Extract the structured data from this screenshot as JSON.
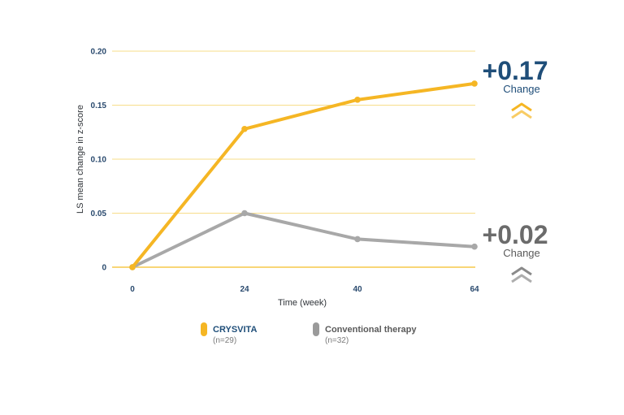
{
  "chart_data": {
    "type": "line",
    "x": [
      0,
      24,
      40,
      64
    ],
    "xlabel": "Time (week)",
    "ylabel": "LS mean change in z-score",
    "xticks": [
      "0",
      "24",
      "40",
      "64"
    ],
    "yticks": [
      "0",
      "0.05",
      "0.10",
      "0.15",
      "0.20"
    ],
    "ylim": [
      0,
      0.2
    ],
    "grid": "horizontal",
    "legend_position": "bottom",
    "series": [
      {
        "name": "CRYSVITA",
        "values": [
          0,
          0.128,
          0.155,
          0.17
        ],
        "color": "#f5b624"
      },
      {
        "name": "Conventional therapy",
        "values": [
          0,
          0.05,
          0.026,
          0.019
        ],
        "color": "#a8a8a8"
      }
    ]
  },
  "legend": [
    {
      "name": "CRYSVITA",
      "n": "(n=29)",
      "swatch": "#f5b624",
      "text_color": "#1f4e79"
    },
    {
      "name": "Conventional therapy",
      "n": "(n=32)",
      "swatch": "#9a9a9a",
      "text_color": "#5a5a5a"
    }
  ],
  "callouts": [
    {
      "value": "+0.17",
      "label": "Change",
      "value_color": "#1f4e79",
      "label_color": "#1f4e79",
      "icon": "double-chevron-up-icon",
      "icon_color": "#f5b624"
    },
    {
      "value": "+0.02",
      "label": "Change",
      "value_color": "#6b6b6b",
      "label_color": "#5a5a5a",
      "icon": "double-chevron-up-icon",
      "icon_color": "#8a8a8a"
    }
  ],
  "colors": {
    "grid": "#f7dd8a",
    "axis": "#f5c94a"
  }
}
